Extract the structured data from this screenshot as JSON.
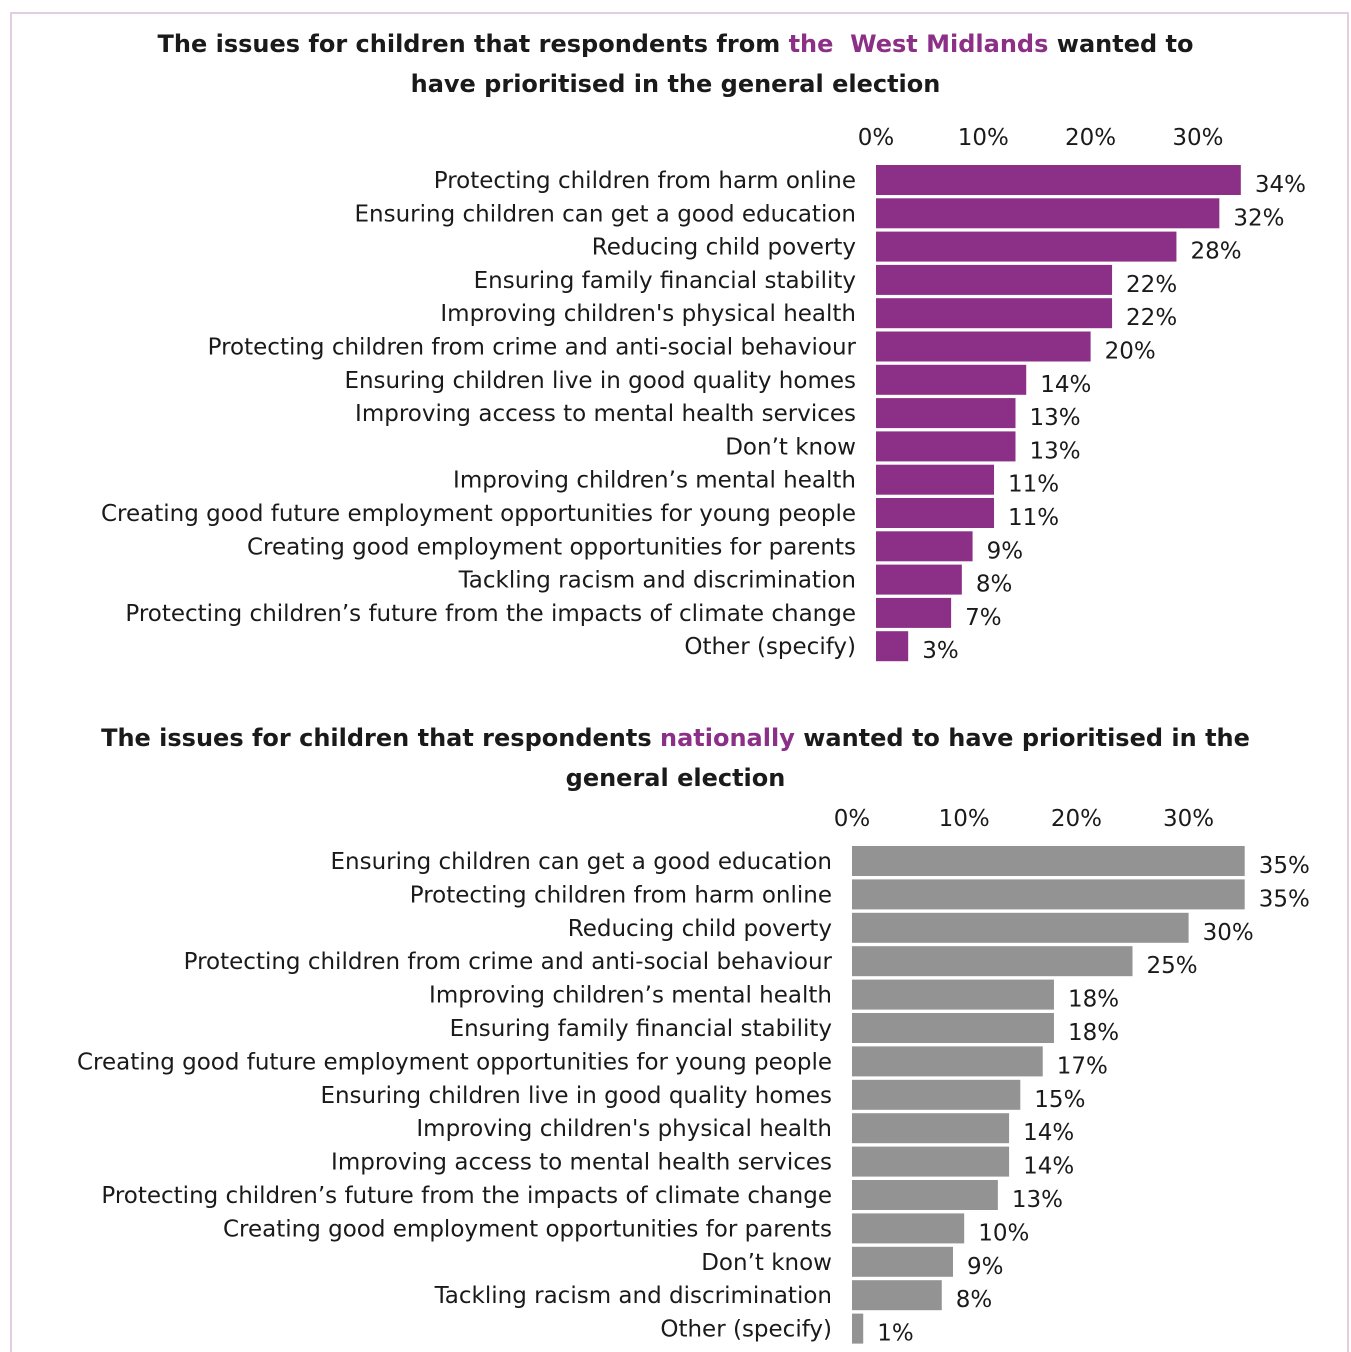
{
  "chart_data": [
    {
      "type": "bar",
      "orientation": "horizontal",
      "title": {
        "before": "The issues for children that respondents from",
        "highlight": "the  West Midlands",
        "after": "wanted to have prioritised in the general election"
      },
      "bar_color": "#8b2f87",
      "highlight_color": "#8b2f87",
      "xlim": [
        0,
        35
      ],
      "ticks": [
        {
          "value": 0,
          "label": "0%"
        },
        {
          "value": 10,
          "label": "10%"
        },
        {
          "value": 20,
          "label": "20%"
        },
        {
          "value": 30,
          "label": "30%"
        }
      ],
      "categories": [
        "Protecting children from harm online",
        "Ensuring children can get a good education",
        "Reducing child poverty",
        "Ensuring family financial stability",
        "Improving children's physical health",
        "Protecting children from crime and anti-social behaviour",
        "Ensuring children live in good quality homes",
        "Improving access to mental health services",
        "Don’t know",
        "Improving children’s mental health",
        "Creating good future employment opportunities for young people",
        "Creating good employment opportunities for parents",
        "Tackling racism and discrimination",
        "Protecting children’s future from the impacts of climate change",
        "Other (specify)"
      ],
      "values": [
        34,
        32,
        28,
        22,
        22,
        20,
        14,
        13,
        13,
        11,
        11,
        9,
        8,
        7,
        3
      ],
      "value_labels": [
        "34%",
        "32%",
        "28%",
        "22%",
        "22%",
        "20%",
        "14%",
        "13%",
        "13%",
        "11%",
        "11%",
        "9%",
        "8%",
        "7%",
        "3%"
      ]
    },
    {
      "type": "bar",
      "orientation": "horizontal",
      "title": {
        "before": "The issues for children that respondents",
        "highlight": "nationally",
        "after": "wanted to have prioritised in the general election"
      },
      "bar_color": "#939393",
      "highlight_color": "#8b2f87",
      "xlim": [
        0,
        35
      ],
      "ticks": [
        {
          "value": 0,
          "label": "0%"
        },
        {
          "value": 10,
          "label": "10%"
        },
        {
          "value": 20,
          "label": "20%"
        },
        {
          "value": 30,
          "label": "30%"
        }
      ],
      "categories": [
        "Ensuring children can get a good education",
        "Protecting children from harm online",
        "Reducing child poverty",
        "Protecting children from crime and anti-social behaviour",
        "Improving children’s mental health",
        "Ensuring family financial stability",
        "Creating good future employment opportunities for young people",
        "Ensuring children live in good quality homes",
        "Improving children's physical health",
        "Improving access to mental health services",
        "Protecting children’s future from the impacts of climate change",
        "Creating good employment opportunities for parents",
        "Don’t know",
        "Tackling racism and discrimination",
        "Other (specify)"
      ],
      "values": [
        35,
        35,
        30,
        25,
        18,
        18,
        17,
        15,
        14,
        14,
        13,
        10,
        9,
        8,
        1
      ],
      "value_labels": [
        "35%",
        "35%",
        "30%",
        "25%",
        "18%",
        "18%",
        "17%",
        "15%",
        "14%",
        "14%",
        "13%",
        "10%",
        "9%",
        "8%",
        "1%"
      ]
    }
  ]
}
